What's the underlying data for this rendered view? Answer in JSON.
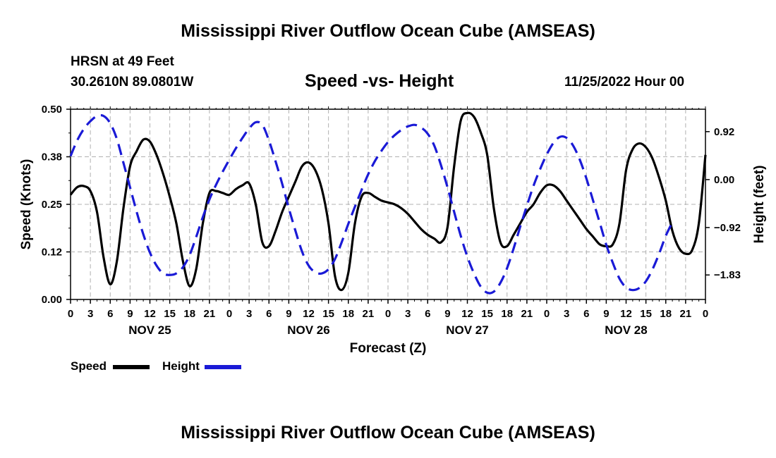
{
  "header": {
    "title": "Mississippi River Outflow Ocean Cube (AMSEAS)",
    "station": "HRSN at 49 Feet",
    "coords": "30.2610N  89.0801W",
    "subtitle": "Speed -vs- Height",
    "datetime": "11/25/2022 Hour 00"
  },
  "footer": {
    "title": "Mississippi River Outflow Ocean Cube (AMSEAS)"
  },
  "colors": {
    "speed": "#000000",
    "height": "#1a1ad6",
    "grid": "#b0b0b0"
  },
  "chart_data": {
    "type": "line",
    "title": "Speed -vs- Height",
    "xlabel": "Forecast (Z)",
    "ylabel": "Speed (Knots)",
    "y2label": "Height (feet)",
    "xlim": [
      0,
      96
    ],
    "ylim": [
      0,
      0.5
    ],
    "y2lim": [
      -2.3,
      1.35
    ],
    "xticks": [
      0,
      3,
      6,
      9,
      12,
      15,
      18,
      21,
      24,
      27,
      30,
      33,
      36,
      39,
      42,
      45,
      48,
      51,
      54,
      57,
      60,
      63,
      66,
      69,
      72,
      75,
      78,
      81,
      84,
      87,
      90,
      93,
      96
    ],
    "xtick_labels": [
      "0",
      "3",
      "6",
      "9",
      "12",
      "15",
      "18",
      "21",
      "0",
      "3",
      "6",
      "9",
      "12",
      "15",
      "18",
      "21",
      "0",
      "3",
      "6",
      "9",
      "12",
      "15",
      "18",
      "21",
      "0",
      "3",
      "6",
      "9",
      "12",
      "15",
      "18",
      "21",
      "0"
    ],
    "yticks": [
      0.0,
      0.125,
      0.25,
      0.375,
      0.5
    ],
    "ytick_labels": [
      "0.00",
      "0.12",
      "0.25",
      "0.38",
      "0.50"
    ],
    "y2ticks": [
      0.92,
      0.0,
      -0.92,
      -1.83
    ],
    "y2tick_labels": [
      "0.92",
      "0.00",
      "−0.92",
      "−1.83"
    ],
    "day_labels": [
      {
        "x": 12,
        "label": "NOV 25"
      },
      {
        "x": 36,
        "label": "NOV 26"
      },
      {
        "x": 60,
        "label": "NOV 27"
      },
      {
        "x": 84,
        "label": "NOV 28"
      }
    ],
    "legend": [
      "Speed",
      "Height"
    ],
    "series": [
      {
        "name": "Speed",
        "axis": "left",
        "style": "solid",
        "points": [
          [
            0,
            0.275
          ],
          [
            1,
            0.295
          ],
          [
            2,
            0.298
          ],
          [
            3,
            0.285
          ],
          [
            4,
            0.23
          ],
          [
            5,
            0.11
          ],
          [
            6,
            0.04
          ],
          [
            7,
            0.1
          ],
          [
            8,
            0.24
          ],
          [
            9,
            0.35
          ],
          [
            10,
            0.39
          ],
          [
            11,
            0.42
          ],
          [
            12,
            0.415
          ],
          [
            13,
            0.38
          ],
          [
            14,
            0.33
          ],
          [
            15,
            0.27
          ],
          [
            16,
            0.2
          ],
          [
            17,
            0.1
          ],
          [
            18,
            0.035
          ],
          [
            19,
            0.08
          ],
          [
            20,
            0.2
          ],
          [
            21,
            0.28
          ],
          [
            22,
            0.285
          ],
          [
            23,
            0.28
          ],
          [
            24,
            0.275
          ],
          [
            25,
            0.29
          ],
          [
            26,
            0.3
          ],
          [
            27,
            0.305
          ],
          [
            28,
            0.25
          ],
          [
            29,
            0.15
          ],
          [
            30,
            0.14
          ],
          [
            31,
            0.18
          ],
          [
            32,
            0.23
          ],
          [
            33,
            0.27
          ],
          [
            34,
            0.31
          ],
          [
            35,
            0.35
          ],
          [
            36,
            0.36
          ],
          [
            37,
            0.34
          ],
          [
            38,
            0.29
          ],
          [
            39,
            0.2
          ],
          [
            40,
            0.06
          ],
          [
            41,
            0.025
          ],
          [
            42,
            0.07
          ],
          [
            43,
            0.2
          ],
          [
            44,
            0.27
          ],
          [
            45,
            0.28
          ],
          [
            46,
            0.27
          ],
          [
            47,
            0.26
          ],
          [
            48,
            0.255
          ],
          [
            49,
            0.25
          ],
          [
            50,
            0.24
          ],
          [
            51,
            0.225
          ],
          [
            52,
            0.205
          ],
          [
            53,
            0.185
          ],
          [
            54,
            0.17
          ],
          [
            55,
            0.16
          ],
          [
            56,
            0.15
          ],
          [
            57,
            0.19
          ],
          [
            58,
            0.35
          ],
          [
            59,
            0.47
          ],
          [
            60,
            0.49
          ],
          [
            61,
            0.48
          ],
          [
            62,
            0.44
          ],
          [
            63,
            0.38
          ],
          [
            64,
            0.24
          ],
          [
            65,
            0.15
          ],
          [
            66,
            0.14
          ],
          [
            67,
            0.17
          ],
          [
            68,
            0.2
          ],
          [
            69,
            0.23
          ],
          [
            70,
            0.25
          ],
          [
            71,
            0.28
          ],
          [
            72,
            0.3
          ],
          [
            73,
            0.3
          ],
          [
            74,
            0.285
          ],
          [
            75,
            0.26
          ],
          [
            76,
            0.235
          ],
          [
            77,
            0.21
          ],
          [
            78,
            0.185
          ],
          [
            79,
            0.165
          ],
          [
            80,
            0.145
          ],
          [
            81,
            0.14
          ],
          [
            82,
            0.145
          ],
          [
            83,
            0.2
          ],
          [
            84,
            0.34
          ],
          [
            85,
            0.395
          ],
          [
            86,
            0.41
          ],
          [
            87,
            0.4
          ],
          [
            88,
            0.37
          ],
          [
            89,
            0.32
          ],
          [
            90,
            0.26
          ],
          [
            91,
            0.18
          ],
          [
            92,
            0.135
          ],
          [
            93,
            0.12
          ],
          [
            94,
            0.13
          ],
          [
            95,
            0.2
          ],
          [
            96,
            0.38
          ]
        ]
      },
      {
        "name": "Height",
        "axis": "right",
        "style": "dashed",
        "points": [
          [
            0,
            0.45
          ],
          [
            1,
            0.75
          ],
          [
            2,
            0.97
          ],
          [
            3,
            1.12
          ],
          [
            4,
            1.22
          ],
          [
            5,
            1.22
          ],
          [
            6,
            1.08
          ],
          [
            7,
            0.78
          ],
          [
            8,
            0.32
          ],
          [
            9,
            -0.15
          ],
          [
            10,
            -0.62
          ],
          [
            11,
            -1.05
          ],
          [
            12,
            -1.4
          ],
          [
            13,
            -1.65
          ],
          [
            14,
            -1.8
          ],
          [
            15,
            -1.83
          ],
          [
            16,
            -1.8
          ],
          [
            17,
            -1.68
          ],
          [
            18,
            -1.45
          ],
          [
            19,
            -1.1
          ],
          [
            20,
            -0.72
          ],
          [
            21,
            -0.38
          ],
          [
            22,
            -0.1
          ],
          [
            23,
            0.15
          ],
          [
            24,
            0.38
          ],
          [
            25,
            0.6
          ],
          [
            26,
            0.8
          ],
          [
            27,
            0.98
          ],
          [
            28,
            1.1
          ],
          [
            29,
            1.05
          ],
          [
            30,
            0.75
          ],
          [
            31,
            0.35
          ],
          [
            32,
            -0.08
          ],
          [
            33,
            -0.55
          ],
          [
            34,
            -0.98
          ],
          [
            35,
            -1.38
          ],
          [
            36,
            -1.65
          ],
          [
            37,
            -1.78
          ],
          [
            38,
            -1.8
          ],
          [
            39,
            -1.72
          ],
          [
            40,
            -1.52
          ],
          [
            41,
            -1.2
          ],
          [
            42,
            -0.85
          ],
          [
            43,
            -0.52
          ],
          [
            44,
            -0.2
          ],
          [
            45,
            0.1
          ],
          [
            46,
            0.35
          ],
          [
            47,
            0.55
          ],
          [
            48,
            0.72
          ],
          [
            49,
            0.85
          ],
          [
            50,
            0.95
          ],
          [
            51,
            1.02
          ],
          [
            52,
            1.05
          ],
          [
            53,
            1.0
          ],
          [
            54,
            0.88
          ],
          [
            55,
            0.65
          ],
          [
            56,
            0.28
          ],
          [
            57,
            -0.15
          ],
          [
            58,
            -0.62
          ],
          [
            59,
            -1.08
          ],
          [
            60,
            -1.48
          ],
          [
            61,
            -1.8
          ],
          [
            62,
            -2.05
          ],
          [
            63,
            -2.17
          ],
          [
            64,
            -2.15
          ],
          [
            65,
            -1.98
          ],
          [
            66,
            -1.7
          ],
          [
            67,
            -1.32
          ],
          [
            68,
            -0.9
          ],
          [
            69,
            -0.5
          ],
          [
            70,
            -0.12
          ],
          [
            71,
            0.2
          ],
          [
            72,
            0.48
          ],
          [
            73,
            0.7
          ],
          [
            74,
            0.82
          ],
          [
            75,
            0.8
          ],
          [
            76,
            0.65
          ],
          [
            77,
            0.38
          ],
          [
            78,
            0.02
          ],
          [
            79,
            -0.4
          ],
          [
            80,
            -0.82
          ],
          [
            81,
            -1.25
          ],
          [
            82,
            -1.6
          ],
          [
            83,
            -1.9
          ],
          [
            84,
            -2.07
          ],
          [
            85,
            -2.12
          ],
          [
            86,
            -2.08
          ],
          [
            87,
            -1.95
          ],
          [
            88,
            -1.72
          ],
          [
            89,
            -1.42
          ],
          [
            90,
            -1.08
          ],
          [
            91,
            -0.82
          ]
        ]
      }
    ]
  }
}
